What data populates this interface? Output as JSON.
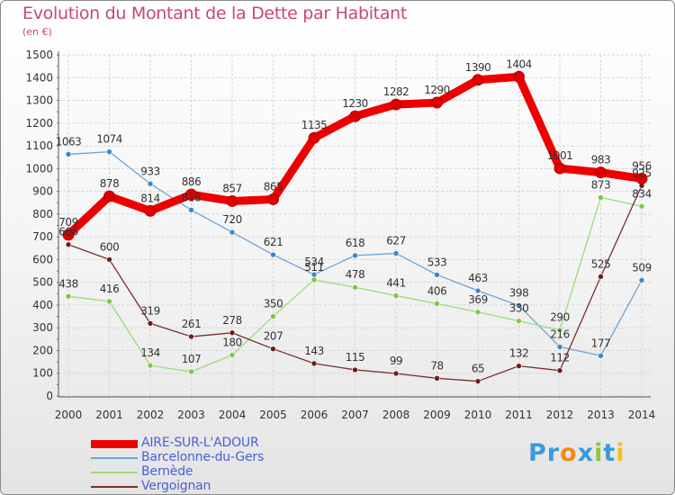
{
  "header": {
    "title": "Evolution du Montant de la Dette par Habitant",
    "unit": "(en €)"
  },
  "logo": {
    "letters": [
      "P",
      "r",
      "o",
      "x",
      "i",
      "t",
      "i"
    ],
    "colors": [
      "#3a9ad9",
      "#3a9ad9",
      "#f08a1a",
      "#3a9ad9",
      "#8cc63f",
      "#3a9ad9",
      "#f0c419"
    ]
  },
  "chart_data": {
    "type": "line",
    "title": "Evolution du Montant de la Dette par Habitant",
    "ylabel": "(en €)",
    "xlabel": "",
    "x": [
      "2000",
      "2001",
      "2002",
      "2003",
      "2004",
      "2005",
      "2006",
      "2007",
      "2008",
      "2009",
      "2010",
      "2011",
      "2012",
      "2013",
      "2014"
    ],
    "ylim": [
      0,
      1500
    ],
    "yticks": [
      0,
      100,
      200,
      300,
      400,
      500,
      600,
      700,
      800,
      900,
      1000,
      1100,
      1200,
      1300,
      1400,
      1500
    ],
    "grid": true,
    "legend_position": "bottom-left",
    "series": [
      {
        "name": "AIRE-SUR-L'ADOUR",
        "color": "#ee0000",
        "marker_color": "#ee0000",
        "emphasis": true,
        "values": [
          709,
          878,
          814,
          886,
          857,
          865,
          1135,
          1230,
          1282,
          1290,
          1390,
          1404,
          1001,
          983,
          956
        ],
        "labels": [
          "709",
          "878",
          "814",
          "886",
          "857",
          "865",
          "1135",
          "1230",
          "1282",
          "1290",
          "1390",
          "1404",
          "1001",
          "983",
          "956"
        ]
      },
      {
        "name": "Barcelonne-du-Gers",
        "color": "#6aa3d5",
        "marker_color": "#3b87c9",
        "values": [
          1063,
          1074,
          933,
          818,
          720,
          621,
          534,
          618,
          627,
          533,
          463,
          398,
          216,
          177,
          509
        ],
        "labels": [
          "1063",
          "1074",
          "933",
          "818",
          "720",
          "621",
          "534",
          "618",
          "627",
          "533",
          "463",
          "398",
          "216",
          "177",
          "509"
        ]
      },
      {
        "name": "Bernède",
        "color": "#99dd77",
        "marker_color": "#7cc844",
        "values": [
          438,
          416,
          134,
          107,
          180,
          350,
          511,
          478,
          441,
          406,
          369,
          330,
          290,
          873,
          834
        ],
        "labels": [
          "438",
          "416",
          "134",
          "107",
          "180",
          "350",
          "511",
          "478",
          "441",
          "406",
          "369",
          "330",
          "290",
          "873",
          "834"
        ]
      },
      {
        "name": "Vergoignan",
        "color": "#7a2e2e",
        "marker_color": "#6b1e1e",
        "values": [
          666,
          600,
          319,
          261,
          278,
          207,
          143,
          115,
          99,
          78,
          65,
          132,
          112,
          525,
          925
        ],
        "labels": [
          "666",
          "600",
          "319",
          "261",
          "278",
          "207",
          "143",
          "115",
          "99",
          "78",
          "65",
          "132",
          "112",
          "525",
          "925"
        ]
      }
    ]
  }
}
